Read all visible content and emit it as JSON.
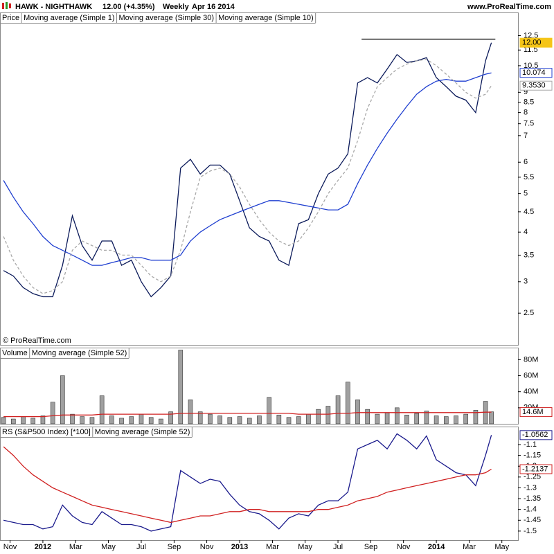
{
  "header": {
    "symbol": "HAWK - NIGHTHAWK",
    "quote": "12.00 (+4.35%)",
    "period": "Weekly",
    "date": "Apr 16 2014",
    "site": "www.ProRealTime.com"
  },
  "chart_data": [
    {
      "type": "line",
      "label": "Price",
      "annotation": "© ProRealTime.com",
      "log_scale": true,
      "xlim": [
        2011.782,
        2014.415
      ],
      "ylim": [
        2.08,
        14.3
      ],
      "yticks": [
        2.5,
        3,
        3.5,
        4,
        4.5,
        5,
        5.5,
        6,
        7,
        7.5,
        8,
        8.5,
        9,
        10.5,
        11.5,
        12.5
      ],
      "hline": {
        "y": 12.25,
        "x": [
          2013.62,
          2014.3
        ],
        "color": "#000000"
      },
      "x": [
        2011.8,
        2011.85,
        2011.9,
        2011.95,
        2012.0,
        2012.05,
        2012.1,
        2012.15,
        2012.2,
        2012.25,
        2012.3,
        2012.35,
        2012.4,
        2012.45,
        2012.5,
        2012.55,
        2012.6,
        2012.65,
        2012.7,
        2012.75,
        2012.8,
        2012.85,
        2012.9,
        2012.95,
        2013.0,
        2013.05,
        2013.1,
        2013.15,
        2013.2,
        2013.25,
        2013.3,
        2013.35,
        2013.4,
        2013.45,
        2013.5,
        2013.55,
        2013.6,
        2013.65,
        2013.7,
        2013.75,
        2013.8,
        2013.85,
        2013.9,
        2013.95,
        2014.0,
        2014.05,
        2014.1,
        2014.15,
        2014.2,
        2014.25,
        2014.28
      ],
      "series": [
        {
          "name": "Moving average (Simple 1)",
          "type": "line",
          "color": "#0b1a5a",
          "tag_color": "#f5c518",
          "last_label": "12.00",
          "values": [
            3.2,
            3.1,
            2.9,
            2.8,
            2.75,
            2.75,
            3.3,
            4.4,
            3.7,
            3.4,
            3.8,
            3.8,
            3.3,
            3.4,
            3.0,
            2.75,
            2.9,
            3.1,
            5.8,
            6.1,
            5.6,
            5.9,
            5.9,
            5.6,
            4.8,
            4.1,
            3.9,
            3.8,
            3.4,
            3.3,
            4.2,
            4.3,
            5.0,
            5.6,
            5.8,
            6.3,
            9.5,
            9.8,
            9.5,
            10.3,
            11.2,
            10.7,
            10.8,
            11.0,
            9.8,
            9.3,
            8.8,
            8.6,
            8.0,
            10.8,
            12.0
          ]
        },
        {
          "name": "Moving average (Simple 30)",
          "type": "line",
          "color": "#1f3fd0",
          "last_label": "10.074",
          "values": [
            5.4,
            4.9,
            4.5,
            4.2,
            3.9,
            3.7,
            3.6,
            3.5,
            3.4,
            3.3,
            3.3,
            3.35,
            3.4,
            3.45,
            3.45,
            3.4,
            3.4,
            3.4,
            3.5,
            3.8,
            4.0,
            4.15,
            4.3,
            4.4,
            4.5,
            4.6,
            4.7,
            4.8,
            4.8,
            4.75,
            4.7,
            4.65,
            4.6,
            4.55,
            4.55,
            4.7,
            5.3,
            5.9,
            6.5,
            7.1,
            7.7,
            8.3,
            8.9,
            9.3,
            9.6,
            9.7,
            9.6,
            9.6,
            9.8,
            10.0,
            10.074
          ]
        },
        {
          "name": "Moving average (Simple 10)",
          "type": "line",
          "color": "#a8a8a8",
          "dash": true,
          "last_label": "9.3530",
          "values": [
            3.9,
            3.4,
            3.1,
            2.9,
            2.8,
            2.85,
            3.0,
            3.6,
            3.8,
            3.7,
            3.6,
            3.6,
            3.5,
            3.5,
            3.3,
            3.1,
            3.0,
            3.1,
            3.6,
            4.5,
            5.5,
            5.7,
            5.8,
            5.6,
            5.2,
            4.7,
            4.3,
            4.0,
            3.8,
            3.7,
            3.8,
            4.1,
            4.5,
            5.0,
            5.4,
            5.8,
            6.8,
            8.2,
            9.3,
            9.8,
            10.3,
            10.6,
            10.8,
            10.9,
            10.5,
            10.0,
            9.5,
            9.0,
            8.7,
            8.9,
            9.353
          ]
        }
      ]
    },
    {
      "type": "bar",
      "xlim": [
        2011.782,
        2014.415
      ],
      "ylim": [
        0,
        95000000
      ],
      "yticks": [
        {
          "value": 20000000,
          "label": "20M"
        },
        {
          "value": 40000000,
          "label": "40M"
        },
        {
          "value": 60000000,
          "label": "60M"
        },
        {
          "value": 80000000,
          "label": "80M"
        }
      ],
      "x": [
        2011.8,
        2011.85,
        2011.9,
        2011.95,
        2012.0,
        2012.05,
        2012.1,
        2012.15,
        2012.2,
        2012.25,
        2012.3,
        2012.35,
        2012.4,
        2012.45,
        2012.5,
        2012.55,
        2012.6,
        2012.65,
        2012.7,
        2012.75,
        2012.8,
        2012.85,
        2012.9,
        2012.95,
        2013.0,
        2013.05,
        2013.1,
        2013.15,
        2013.2,
        2013.25,
        2013.3,
        2013.35,
        2013.4,
        2013.45,
        2013.5,
        2013.55,
        2013.6,
        2013.65,
        2013.7,
        2013.75,
        2013.8,
        2013.85,
        2013.9,
        2013.95,
        2014.0,
        2014.05,
        2014.1,
        2014.15,
        2014.2,
        2014.25,
        2014.28
      ],
      "series": [
        {
          "name": "Volume",
          "type": "bar",
          "color": "#a0a0a0",
          "values": [
            8000000,
            6000000,
            9000000,
            7000000,
            10000000,
            27000000,
            60000000,
            12000000,
            9000000,
            8000000,
            35000000,
            10000000,
            7000000,
            9000000,
            12000000,
            8000000,
            6000000,
            15000000,
            92000000,
            30000000,
            15000000,
            12000000,
            10000000,
            8000000,
            9000000,
            7000000,
            10000000,
            33000000,
            11000000,
            8000000,
            9000000,
            12000000,
            18000000,
            22000000,
            35000000,
            52000000,
            30000000,
            18000000,
            12000000,
            14000000,
            20000000,
            11000000,
            13000000,
            16000000,
            10000000,
            9000000,
            10000000,
            12000000,
            17000000,
            28000000,
            15000000
          ]
        },
        {
          "name": "Moving average (Simple 52)",
          "type": "line",
          "color": "#d02020",
          "last_label": "14.6M",
          "values": [
            9000000,
            9000000,
            9000000,
            9000000,
            9000000,
            10000000,
            11000000,
            11000000,
            11000000,
            11000000,
            12000000,
            12000000,
            12000000,
            12000000,
            12000000,
            12000000,
            12000000,
            12000000,
            13000000,
            13000000,
            13000000,
            13000000,
            13000000,
            13000000,
            13000000,
            13000000,
            13000000,
            13000000,
            13000000,
            13000000,
            12000000,
            12000000,
            12000000,
            12000000,
            13000000,
            13000000,
            14000000,
            14000000,
            14000000,
            14000000,
            14000000,
            14000000,
            14000000,
            14000000,
            14000000,
            14000000,
            14000000,
            14000000,
            14000000,
            14500000,
            14600000
          ]
        }
      ]
    },
    {
      "type": "line",
      "xlim": [
        2011.782,
        2014.415
      ],
      "ylim": [
        -1.542,
        -1.0167
      ],
      "yticks": [
        -1.1,
        -1.15,
        -1.2,
        -1.25,
        -1.3,
        -1.35,
        -1.4,
        -1.45,
        -1.5
      ],
      "xticks": [
        {
          "value": 2011.833,
          "label": "Nov"
        },
        {
          "value": 2012.0,
          "label": "2012"
        },
        {
          "value": 2012.167,
          "label": "Mar"
        },
        {
          "value": 2012.333,
          "label": "May"
        },
        {
          "value": 2012.5,
          "label": "Jul"
        },
        {
          "value": 2012.667,
          "label": "Sep"
        },
        {
          "value": 2012.833,
          "label": "Nov"
        },
        {
          "value": 2013.0,
          "label": "2013"
        },
        {
          "value": 2013.167,
          "label": "Mar"
        },
        {
          "value": 2013.333,
          "label": "May"
        },
        {
          "value": 2013.5,
          "label": "Jul"
        },
        {
          "value": 2013.667,
          "label": "Sep"
        },
        {
          "value": 2013.833,
          "label": "Nov"
        },
        {
          "value": 2014.0,
          "label": "2014"
        },
        {
          "value": 2014.167,
          "label": "Mar"
        },
        {
          "value": 2014.333,
          "label": "May"
        }
      ],
      "x": [
        2011.8,
        2011.85,
        2011.9,
        2011.95,
        2012.0,
        2012.05,
        2012.1,
        2012.15,
        2012.2,
        2012.25,
        2012.3,
        2012.35,
        2012.4,
        2012.45,
        2012.5,
        2012.55,
        2012.6,
        2012.65,
        2012.7,
        2012.75,
        2012.8,
        2012.85,
        2012.9,
        2012.95,
        2013.0,
        2013.05,
        2013.1,
        2013.15,
        2013.2,
        2013.25,
        2013.3,
        2013.35,
        2013.4,
        2013.45,
        2013.5,
        2013.55,
        2013.6,
        2013.65,
        2013.7,
        2013.75,
        2013.8,
        2013.85,
        2013.9,
        2013.95,
        2014.0,
        2014.05,
        2014.1,
        2014.15,
        2014.2,
        2014.25,
        2014.28
      ],
      "series": [
        {
          "name": "RS (S&P500 Index) [*100]",
          "type": "line",
          "color": "#1a1a8c",
          "last_label": "-1.0562",
          "values": [
            -1.45,
            -1.46,
            -1.47,
            -1.47,
            -1.49,
            -1.48,
            -1.38,
            -1.43,
            -1.46,
            -1.47,
            -1.41,
            -1.44,
            -1.47,
            -1.47,
            -1.48,
            -1.5,
            -1.49,
            -1.48,
            -1.22,
            -1.25,
            -1.28,
            -1.26,
            -1.27,
            -1.33,
            -1.38,
            -1.41,
            -1.42,
            -1.45,
            -1.49,
            -1.44,
            -1.42,
            -1.43,
            -1.38,
            -1.36,
            -1.36,
            -1.32,
            -1.12,
            -1.1,
            -1.08,
            -1.12,
            -1.05,
            -1.08,
            -1.12,
            -1.06,
            -1.17,
            -1.2,
            -1.23,
            -1.24,
            -1.29,
            -1.15,
            -1.0562
          ]
        },
        {
          "name": "Moving average (Simple 52)",
          "type": "line",
          "color": "#d02020",
          "last_label": "-1.2137",
          "values": [
            -1.11,
            -1.15,
            -1.2,
            -1.24,
            -1.27,
            -1.3,
            -1.32,
            -1.34,
            -1.36,
            -1.38,
            -1.39,
            -1.4,
            -1.41,
            -1.42,
            -1.43,
            -1.44,
            -1.45,
            -1.46,
            -1.45,
            -1.44,
            -1.43,
            -1.43,
            -1.42,
            -1.41,
            -1.41,
            -1.4,
            -1.4,
            -1.41,
            -1.41,
            -1.41,
            -1.41,
            -1.41,
            -1.4,
            -1.4,
            -1.39,
            -1.38,
            -1.36,
            -1.35,
            -1.34,
            -1.32,
            -1.31,
            -1.3,
            -1.29,
            -1.28,
            -1.27,
            -1.26,
            -1.25,
            -1.24,
            -1.24,
            -1.23,
            -1.2137
          ]
        }
      ]
    }
  ]
}
